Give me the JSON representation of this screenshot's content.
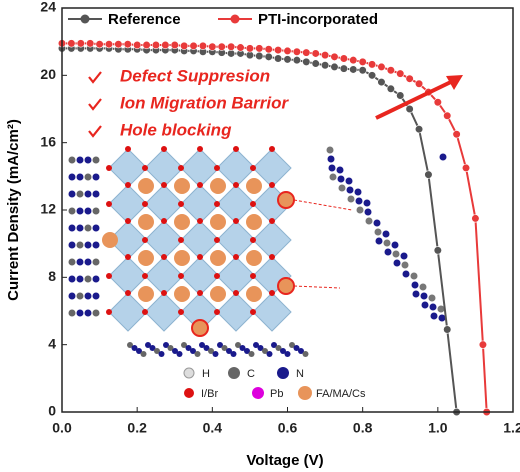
{
  "chart_data": {
    "type": "line",
    "x_label": "Voltage (V)",
    "y_label": "Current Density (mA/cm²)",
    "xlim": [
      0,
      1.2
    ],
    "ylim": [
      0,
      24
    ],
    "xticks": [
      {
        "value": 0,
        "label": "0.0"
      },
      {
        "value": 0.2,
        "label": "0.2"
      },
      {
        "value": 0.4,
        "label": "0.4"
      },
      {
        "value": 0.6,
        "label": "0.6"
      },
      {
        "value": 0.8,
        "label": "0.8"
      },
      {
        "value": 1.0,
        "label": "1.0"
      },
      {
        "value": 1.2,
        "label": "1.2"
      }
    ],
    "yticks": [
      0,
      4,
      8,
      12,
      16,
      20,
      24
    ],
    "series": [
      {
        "name": "Reference",
        "color": "#555555",
        "x": [
          0,
          0.025,
          0.05,
          0.075,
          0.1,
          0.125,
          0.15,
          0.175,
          0.2,
          0.225,
          0.25,
          0.275,
          0.3,
          0.325,
          0.35,
          0.375,
          0.4,
          0.425,
          0.45,
          0.475,
          0.5,
          0.525,
          0.55,
          0.575,
          0.6,
          0.625,
          0.65,
          0.675,
          0.7,
          0.725,
          0.75,
          0.775,
          0.8,
          0.825,
          0.85,
          0.875,
          0.9,
          0.925,
          0.95,
          0.975,
          1.0,
          1.025,
          1.05
        ],
        "values": [
          21.6,
          21.6,
          21.6,
          21.6,
          21.6,
          21.6,
          21.55,
          21.55,
          21.55,
          21.5,
          21.5,
          21.5,
          21.5,
          21.45,
          21.45,
          21.4,
          21.4,
          21.35,
          21.3,
          21.3,
          21.2,
          21.15,
          21.1,
          21.0,
          20.95,
          20.9,
          20.8,
          20.7,
          20.6,
          20.5,
          20.4,
          20.35,
          20.3,
          20.0,
          19.6,
          19.2,
          18.8,
          18.0,
          16.8,
          14.1,
          9.6,
          4.9,
          0
        ]
      },
      {
        "name": "PTI-incorporated",
        "color": "#e83a3a",
        "x": [
          0,
          0.025,
          0.05,
          0.075,
          0.1,
          0.125,
          0.15,
          0.175,
          0.2,
          0.225,
          0.25,
          0.275,
          0.3,
          0.325,
          0.35,
          0.375,
          0.4,
          0.425,
          0.45,
          0.475,
          0.5,
          0.525,
          0.55,
          0.575,
          0.6,
          0.625,
          0.65,
          0.675,
          0.7,
          0.725,
          0.75,
          0.775,
          0.8,
          0.825,
          0.85,
          0.875,
          0.9,
          0.925,
          0.95,
          0.975,
          1.0,
          1.025,
          1.05,
          1.075,
          1.1,
          1.12,
          1.13
        ],
        "values": [
          21.9,
          21.9,
          21.9,
          21.9,
          21.85,
          21.85,
          21.85,
          21.85,
          21.8,
          21.8,
          21.8,
          21.8,
          21.8,
          21.75,
          21.75,
          21.75,
          21.7,
          21.7,
          21.7,
          21.65,
          21.6,
          21.6,
          21.55,
          21.5,
          21.45,
          21.4,
          21.35,
          21.3,
          21.2,
          21.1,
          21.0,
          20.9,
          20.8,
          20.65,
          20.5,
          20.3,
          20.1,
          19.8,
          19.5,
          19.0,
          18.4,
          17.6,
          16.5,
          14.5,
          11.5,
          4.0,
          0
        ]
      }
    ],
    "annotations": [
      "Defect Suppresion",
      "Ion Migration Barrior",
      "Hole blocking"
    ],
    "inset_labels": [
      "H",
      "C",
      "N",
      "I/Br",
      "Pb",
      "FA/MA/Cs"
    ],
    "legend": "top"
  }
}
